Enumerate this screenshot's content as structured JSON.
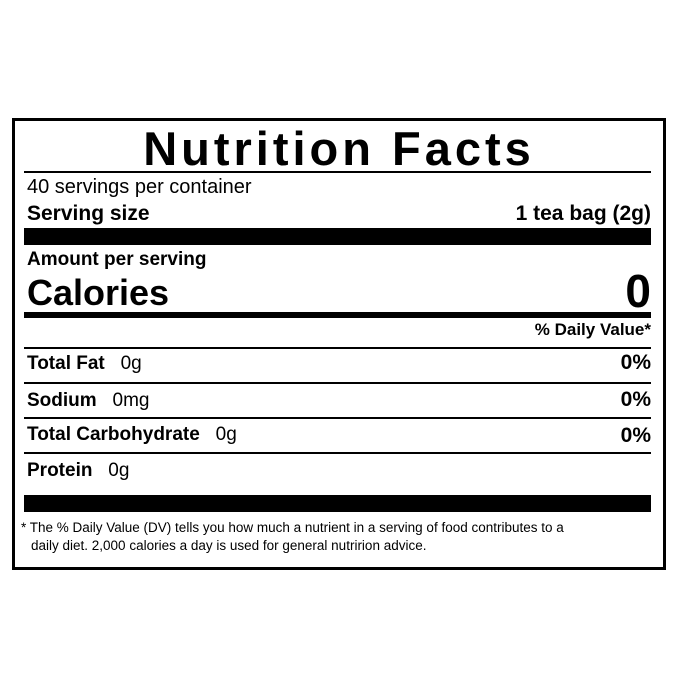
{
  "title": "Nutrition Facts",
  "servings_per_container": "40 servings per container",
  "serving_size": {
    "label": "Serving size",
    "value": "1 tea bag (2g)"
  },
  "amount_per_serving": "Amount per serving",
  "calories": {
    "label": "Calories",
    "value": "0"
  },
  "daily_value_header": "% Daily Value*",
  "nutrients": [
    {
      "name": "Total Fat",
      "amount": "0g",
      "dv": "0%"
    },
    {
      "name": "Sodium",
      "amount": "0mg",
      "dv": "0%"
    },
    {
      "name": "Total Carbohydrate",
      "amount": "0g",
      "dv": "0%"
    },
    {
      "name": "Protein",
      "amount": "0g",
      "dv": ""
    }
  ],
  "footnote": {
    "line1": "* The % Daily Value (DV) tells you how much a nutrient in a serving of food contributes to a",
    "line2": "daily diet. 2,000 calories a day is used for general nutririon advice."
  }
}
